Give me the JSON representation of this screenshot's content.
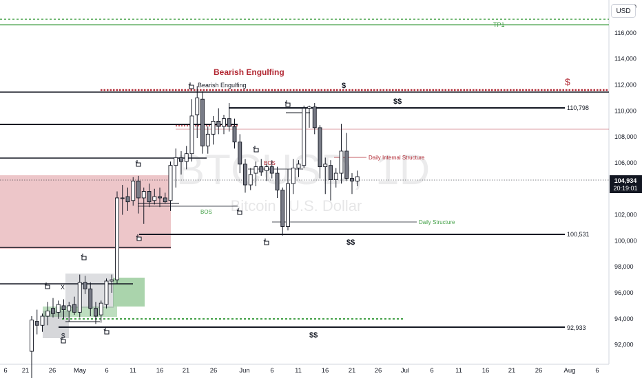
{
  "currency_button": "USD",
  "watermark": {
    "symbol": "BTCUSD, 1D",
    "name": "Bitcoin / U.S. Dollar"
  },
  "colors": {
    "bull": "#ffffff",
    "bear": "#787b86",
    "wick": "#131722",
    "red": "#b22833",
    "green": "#43a047",
    "line": "#131722"
  },
  "chart_data": {
    "type": "candlestick",
    "y_range": [
      90500,
      118000
    ],
    "y_ticks": [
      92000,
      94000,
      96000,
      98000,
      100000,
      102000,
      104000,
      106000,
      108000,
      110000,
      112000,
      114000,
      116000,
      118000
    ],
    "y_tick_labels": [
      "92,000",
      "94,000",
      "96,000",
      "98,000",
      "100,000",
      "102,000",
      "104,000",
      "106,000",
      "108,000",
      "110,000",
      "112,000",
      "114,000",
      "116,000",
      "118,000"
    ],
    "x_ticks": [
      "6",
      "21",
      "26",
      "May",
      "6",
      "11",
      "16",
      "21",
      "26",
      "Jun",
      "6",
      "11",
      "16",
      "21",
      "26",
      "Jul",
      "6",
      "11",
      "16",
      "21",
      "26",
      "Aug",
      "6"
    ],
    "price_label": {
      "value": "104,934",
      "countdown": "20:19:01"
    },
    "levels": [
      {
        "price": 117400,
        "label": "TP1",
        "style": "green-dashed"
      },
      {
        "price": 112000,
        "label": "$",
        "style": "red-dotted"
      },
      {
        "price": 110798,
        "label": "110,798",
        "marker": "$$",
        "style": "black"
      },
      {
        "price": 100531,
        "label": "100,531",
        "marker": "$$",
        "style": "black"
      },
      {
        "price": 92933,
        "label": "92,933",
        "marker": "$$",
        "style": "black"
      }
    ],
    "annotations": {
      "bearish_title": "Bearish Engulfing",
      "bearish_small": "Bearish Engulfing",
      "dollar_top": "$",
      "dollar_red": "$",
      "daily_internal": "Daily Internal Structure",
      "daily_structure": "Daily Structure",
      "bos_red": "BOS",
      "bos_green": "BOS",
      "x_mark": "X",
      "dollar_small": "$"
    },
    "candles": [
      {
        "o": 91500,
        "h": 94200,
        "l": 88000,
        "c": 93900
      },
      {
        "o": 93800,
        "h": 94700,
        "l": 92800,
        "c": 93500
      },
      {
        "o": 93500,
        "h": 94400,
        "l": 93000,
        "c": 94200
      },
      {
        "o": 94200,
        "h": 95300,
        "l": 93500,
        "c": 94600
      },
      {
        "o": 94800,
        "h": 95600,
        "l": 94100,
        "c": 94400
      },
      {
        "o": 94500,
        "h": 95400,
        "l": 94000,
        "c": 95100
      },
      {
        "o": 95000,
        "h": 95500,
        "l": 94000,
        "c": 94700
      },
      {
        "o": 94600,
        "h": 95300,
        "l": 93800,
        "c": 95000
      },
      {
        "o": 95100,
        "h": 95700,
        "l": 94300,
        "c": 94500
      },
      {
        "o": 94500,
        "h": 97400,
        "l": 94100,
        "c": 96800
      },
      {
        "o": 96800,
        "h": 97300,
        "l": 95900,
        "c": 96300
      },
      {
        "o": 96300,
        "h": 96800,
        "l": 94200,
        "c": 94800
      },
      {
        "o": 94800,
        "h": 95300,
        "l": 93600,
        "c": 94200
      },
      {
        "o": 94300,
        "h": 95400,
        "l": 93700,
        "c": 95200
      },
      {
        "o": 95100,
        "h": 97100,
        "l": 94800,
        "c": 96900
      },
      {
        "o": 96900,
        "h": 97400,
        "l": 96000,
        "c": 97000
      },
      {
        "o": 97000,
        "h": 103800,
        "l": 96700,
        "c": 103300
      },
      {
        "o": 103300,
        "h": 104300,
        "l": 102000,
        "c": 103300
      },
      {
        "o": 103400,
        "h": 104100,
        "l": 102300,
        "c": 103000
      },
      {
        "o": 103100,
        "h": 104900,
        "l": 102700,
        "c": 104600
      },
      {
        "o": 104600,
        "h": 105000,
        "l": 102100,
        "c": 103300
      },
      {
        "o": 103300,
        "h": 104100,
        "l": 101300,
        "c": 103800
      },
      {
        "o": 103800,
        "h": 104400,
        "l": 102600,
        "c": 103000
      },
      {
        "o": 103100,
        "h": 104000,
        "l": 102800,
        "c": 103400
      },
      {
        "o": 103400,
        "h": 104100,
        "l": 102600,
        "c": 103300
      },
      {
        "o": 103300,
        "h": 103700,
        "l": 102900,
        "c": 103000
      },
      {
        "o": 103100,
        "h": 106100,
        "l": 102300,
        "c": 105800
      },
      {
        "o": 105800,
        "h": 107100,
        "l": 104100,
        "c": 106400
      },
      {
        "o": 106400,
        "h": 106900,
        "l": 105100,
        "c": 106100
      },
      {
        "o": 106100,
        "h": 107300,
        "l": 105500,
        "c": 106700
      },
      {
        "o": 106700,
        "h": 110900,
        "l": 106100,
        "c": 109600
      },
      {
        "o": 109700,
        "h": 111900,
        "l": 107900,
        "c": 111000
      },
      {
        "o": 110900,
        "h": 111500,
        "l": 106700,
        "c": 107300
      },
      {
        "o": 107300,
        "h": 108800,
        "l": 106700,
        "c": 108200
      },
      {
        "o": 108200,
        "h": 109600,
        "l": 107400,
        "c": 109200
      },
      {
        "o": 109200,
        "h": 110200,
        "l": 108200,
        "c": 108800
      },
      {
        "o": 108800,
        "h": 109700,
        "l": 108200,
        "c": 109400
      },
      {
        "o": 109400,
        "h": 110600,
        "l": 108400,
        "c": 108800
      },
      {
        "o": 108800,
        "h": 109400,
        "l": 107100,
        "c": 107600
      },
      {
        "o": 107600,
        "h": 108200,
        "l": 105200,
        "c": 105900
      },
      {
        "o": 105900,
        "h": 106300,
        "l": 103700,
        "c": 104300
      },
      {
        "o": 104300,
        "h": 105600,
        "l": 103900,
        "c": 105100
      },
      {
        "o": 105200,
        "h": 106100,
        "l": 104200,
        "c": 105700
      },
      {
        "o": 105700,
        "h": 106300,
        "l": 105000,
        "c": 105300
      },
      {
        "o": 105400,
        "h": 105900,
        "l": 104600,
        "c": 105700
      },
      {
        "o": 105700,
        "h": 106200,
        "l": 104800,
        "c": 105200
      },
      {
        "o": 105200,
        "h": 105700,
        "l": 103300,
        "c": 103900
      },
      {
        "o": 103900,
        "h": 104100,
        "l": 100400,
        "c": 101100
      },
      {
        "o": 101100,
        "h": 105500,
        "l": 100800,
        "c": 104400
      },
      {
        "o": 104400,
        "h": 106300,
        "l": 103600,
        "c": 105600
      },
      {
        "o": 105600,
        "h": 106200,
        "l": 104900,
        "c": 105900
      },
      {
        "o": 105800,
        "h": 110400,
        "l": 105600,
        "c": 110200
      },
      {
        "o": 110200,
        "h": 110400,
        "l": 108700,
        "c": 110300
      },
      {
        "o": 110300,
        "h": 110600,
        "l": 108200,
        "c": 108700
      },
      {
        "o": 108700,
        "h": 108900,
        "l": 104800,
        "c": 105700
      },
      {
        "o": 105700,
        "h": 106400,
        "l": 103600,
        "c": 105900
      },
      {
        "o": 105800,
        "h": 106200,
        "l": 103100,
        "c": 104700
      },
      {
        "o": 104700,
        "h": 105600,
        "l": 104100,
        "c": 105200
      },
      {
        "o": 105200,
        "h": 109000,
        "l": 104400,
        "c": 106900
      },
      {
        "o": 106900,
        "h": 108300,
        "l": 104600,
        "c": 104800
      },
      {
        "o": 104800,
        "h": 105200,
        "l": 103600,
        "c": 104600
      },
      {
        "o": 104600,
        "h": 105400,
        "l": 104200,
        "c": 104934
      }
    ]
  }
}
